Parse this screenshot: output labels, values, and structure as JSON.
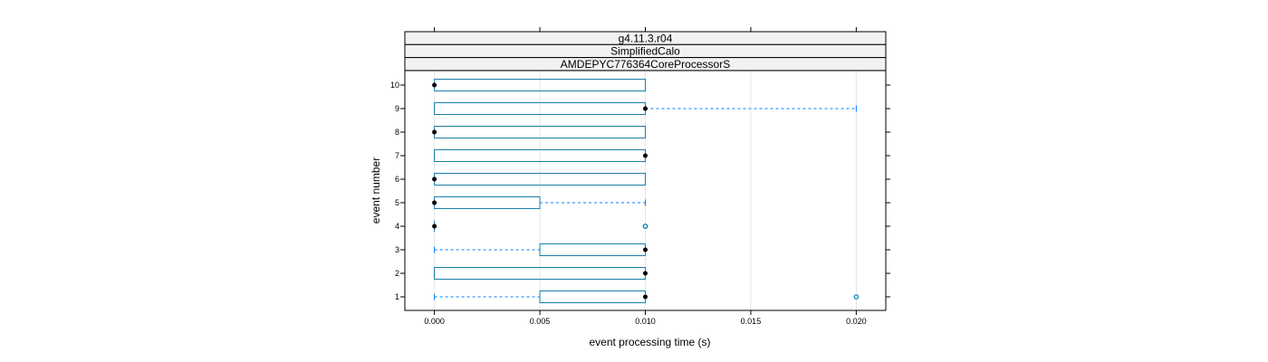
{
  "chart_data": {
    "type": "boxplot",
    "strips": [
      "g4.11.3.r04",
      "SimplifiedCalo",
      "AMDEPYC776364CoreProcessorS"
    ],
    "xlabel": "event processing time (s)",
    "ylabel": "event number",
    "xlim": [
      -0.0014,
      0.0214
    ],
    "x_ticks": [
      0.0,
      0.005,
      0.01,
      0.015,
      0.02
    ],
    "x_tick_labels": [
      "0.000",
      "0.005",
      "0.010",
      "0.015",
      "0.020"
    ],
    "grid": "vertical",
    "categories": [
      "1",
      "2",
      "3",
      "4",
      "5",
      "6",
      "7",
      "8",
      "9",
      "10"
    ],
    "boxes": [
      {
        "event": "1",
        "whisker_low": 0.0,
        "q1": 0.005,
        "median": 0.01,
        "q3": 0.01,
        "whisker_high": 0.01,
        "outliers": [
          0.02
        ]
      },
      {
        "event": "2",
        "whisker_low": 0.0,
        "q1": 0.0,
        "median": 0.01,
        "q3": 0.01,
        "whisker_high": 0.01,
        "outliers": []
      },
      {
        "event": "3",
        "whisker_low": 0.0,
        "q1": 0.005,
        "median": 0.01,
        "q3": 0.01,
        "whisker_high": 0.01,
        "outliers": []
      },
      {
        "event": "4",
        "whisker_low": 0.0,
        "q1": 0.0,
        "median": 0.0,
        "q3": 0.0,
        "whisker_high": 0.0,
        "outliers": [
          0.01,
          0.01
        ]
      },
      {
        "event": "5",
        "whisker_low": 0.0,
        "q1": 0.0,
        "median": 0.0,
        "q3": 0.005,
        "whisker_high": 0.01,
        "outliers": []
      },
      {
        "event": "6",
        "whisker_low": 0.0,
        "q1": 0.0,
        "median": 0.0,
        "q3": 0.01,
        "whisker_high": 0.01,
        "outliers": []
      },
      {
        "event": "7",
        "whisker_low": 0.0,
        "q1": 0.0,
        "median": 0.01,
        "q3": 0.01,
        "whisker_high": 0.01,
        "outliers": []
      },
      {
        "event": "8",
        "whisker_low": 0.0,
        "q1": 0.0,
        "median": 0.0,
        "q3": 0.01,
        "whisker_high": 0.01,
        "outliers": []
      },
      {
        "event": "9",
        "whisker_low": 0.0,
        "q1": 0.0,
        "median": 0.01,
        "q3": 0.01,
        "whisker_high": 0.02,
        "outliers": []
      },
      {
        "event": "10",
        "whisker_low": 0.0,
        "q1": 0.0,
        "median": 0.0,
        "q3": 0.01,
        "whisker_high": 0.01,
        "outliers": []
      }
    ],
    "colors": {
      "box": "#0080ff",
      "box_stroke": "#1a7fa8",
      "median": "#000000",
      "outlier": "#0080aa",
      "strip_bg": "#f2f2f2",
      "grid": "#e6e6e6"
    }
  }
}
